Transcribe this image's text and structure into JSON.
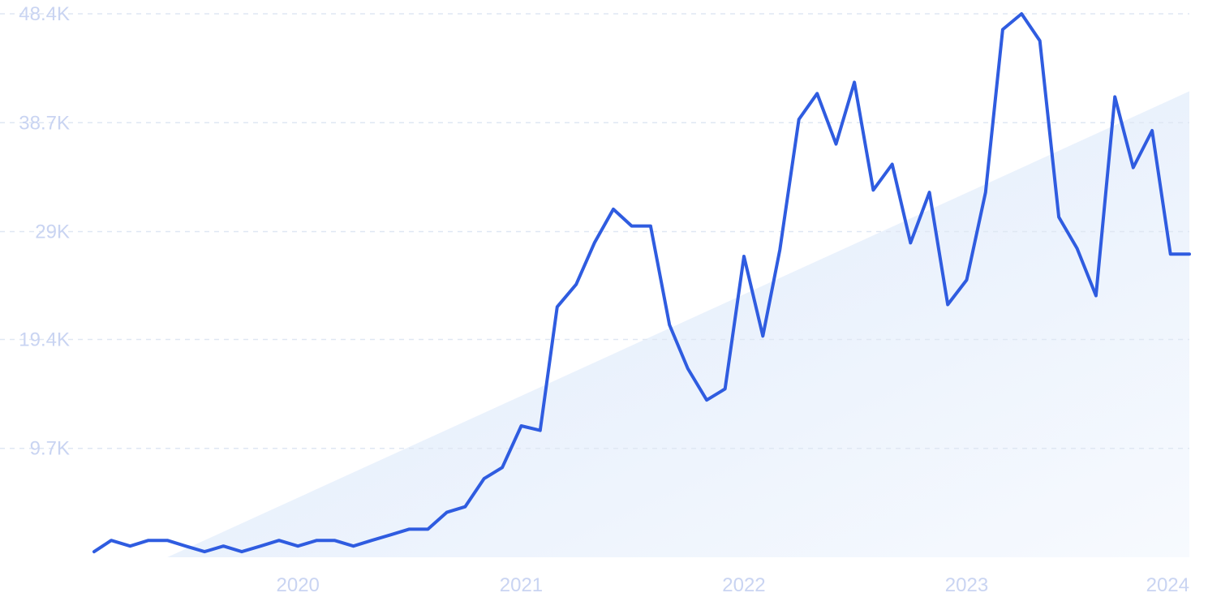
{
  "chart_data": {
    "type": "line",
    "title": "",
    "xlabel": "",
    "ylabel": "",
    "y_tick_labels": [
      "9.7K",
      "19.4K",
      "29K",
      "38.7K",
      "48.4K"
    ],
    "y_tick_values": [
      9700,
      19400,
      29000,
      38700,
      48400
    ],
    "ylim": [
      0,
      48400
    ],
    "x_tick_labels": [
      "2020",
      "2021",
      "2022",
      "2023",
      "2024"
    ],
    "x_tick_values": [
      "2020-01-01",
      "2021-01-01",
      "2022-01-01",
      "2023-01-01",
      "2024-01-01"
    ],
    "xlim": [
      "2019-02-01",
      "2024-01-01"
    ],
    "grid": true,
    "legend": "none",
    "colors": {
      "line": "#2f5ce0",
      "trend_fill_start": "#dde9fb",
      "trend_fill_end": "#f7fafe",
      "grid": "#dfe7f3",
      "tick_text": "#c9d4f2"
    },
    "trend_area": {
      "start": {
        "x": "2019-06-01",
        "y": 0
      },
      "end": {
        "x": "2024-01-01",
        "y": 41500
      }
    },
    "series": [
      {
        "x": [
          "2019-02-01",
          "2019-03-01",
          "2019-04-01",
          "2019-05-01",
          "2019-06-01",
          "2019-07-01",
          "2019-08-01",
          "2019-09-01",
          "2019-10-01",
          "2019-11-01",
          "2019-12-01",
          "2020-01-01",
          "2020-02-01",
          "2020-03-01",
          "2020-04-01",
          "2020-05-01",
          "2020-06-01",
          "2020-07-01",
          "2020-08-01",
          "2020-09-01",
          "2020-10-01",
          "2020-11-01",
          "2020-12-01",
          "2021-01-01",
          "2021-02-01",
          "2021-03-01",
          "2021-04-01",
          "2021-05-01",
          "2021-06-01",
          "2021-07-01",
          "2021-08-01",
          "2021-09-01",
          "2021-10-01",
          "2021-11-01",
          "2021-12-01",
          "2022-01-01",
          "2022-02-01",
          "2022-03-01",
          "2022-04-01",
          "2022-05-01",
          "2022-06-01",
          "2022-07-01",
          "2022-08-01",
          "2022-09-01",
          "2022-10-01",
          "2022-11-01",
          "2022-12-01",
          "2023-01-01",
          "2023-02-01",
          "2023-03-01",
          "2023-04-01",
          "2023-05-01",
          "2023-06-01",
          "2023-07-01",
          "2023-08-01",
          "2023-09-01",
          "2023-10-01",
          "2023-11-01",
          "2023-12-01",
          "2024-01-01"
        ],
        "values": [
          500,
          1500,
          1000,
          1500,
          1500,
          1000,
          500,
          1000,
          500,
          1000,
          1500,
          1000,
          1500,
          1500,
          1000,
          1500,
          2000,
          2500,
          2500,
          4000,
          4500,
          7000,
          8000,
          11700,
          11300,
          22300,
          24300,
          28000,
          31000,
          29500,
          29500,
          20700,
          16800,
          14000,
          15000,
          26800,
          19700,
          27400,
          39000,
          41300,
          36800,
          42300,
          32700,
          35000,
          28000,
          32500,
          22500,
          24700,
          32500,
          47000,
          48400,
          46000,
          30300,
          27500,
          23300,
          41000,
          34700,
          38000,
          27000,
          27000
        ]
      }
    ]
  }
}
